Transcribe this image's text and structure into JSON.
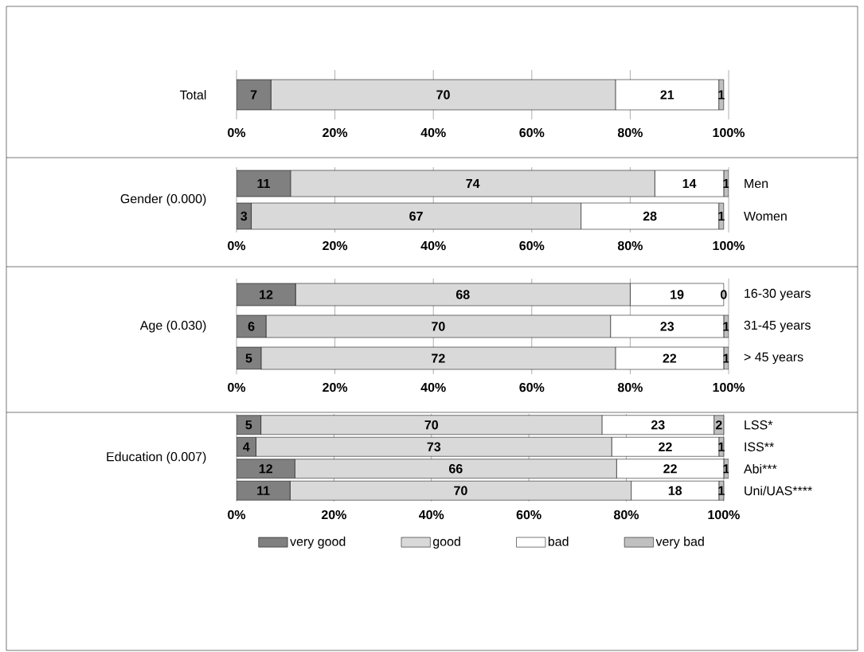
{
  "chart_data": [
    {
      "type": "bar",
      "orientation": "horizontal",
      "stacked": true,
      "ylabel": "Total",
      "categories": [
        null
      ],
      "series": [
        {
          "color": "#808080",
          "values": [
            7
          ]
        },
        {
          "color": "#d9d9d9",
          "values": [
            70
          ]
        },
        {
          "color": "#ffffff",
          "values": [
            21
          ]
        },
        {
          "color": "#c0c0c0",
          "values": [
            1
          ]
        }
      ],
      "xlim": [
        0,
        100
      ],
      "xticks": [
        {
          "value": 0,
          "label": "0%"
        },
        {
          "value": 20,
          "label": "20%"
        },
        {
          "value": 40,
          "label": "40%"
        },
        {
          "value": 60,
          "label": "60%"
        },
        {
          "value": 80,
          "label": "80%"
        },
        {
          "value": 100,
          "label": "100%"
        }
      ],
      "grid": "x",
      "data_labels": true
    },
    {
      "type": "bar",
      "orientation": "horizontal",
      "stacked": true,
      "ylabel": "Gender (0.000)",
      "categories": [
        "Men",
        "Women"
      ],
      "series": [
        {
          "color": "#808080",
          "values": [
            11,
            3
          ]
        },
        {
          "color": "#d9d9d9",
          "values": [
            74,
            67
          ]
        },
        {
          "color": "#ffffff",
          "values": [
            14,
            28
          ]
        },
        {
          "color": "#c0c0c0",
          "values": [
            1,
            1
          ]
        }
      ],
      "xlim": [
        0,
        100
      ],
      "xticks": [
        {
          "value": 0,
          "label": "0%"
        },
        {
          "value": 20,
          "label": "20%"
        },
        {
          "value": 40,
          "label": "40%"
        },
        {
          "value": 60,
          "label": "60%"
        },
        {
          "value": 80,
          "label": "80%"
        },
        {
          "value": 100,
          "label": "100%"
        }
      ],
      "grid": "x",
      "data_labels": true
    },
    {
      "type": "bar",
      "orientation": "horizontal",
      "stacked": true,
      "ylabel": "Age (0.030)",
      "categories": [
        "16-30 years",
        "31-45 years",
        "> 45 years"
      ],
      "series": [
        {
          "color": "#808080",
          "values": [
            12,
            6,
            5
          ]
        },
        {
          "color": "#d9d9d9",
          "values": [
            68,
            70,
            72
          ]
        },
        {
          "color": "#ffffff",
          "values": [
            19,
            23,
            22
          ]
        },
        {
          "color": "#c0c0c0",
          "values": [
            0,
            1,
            1
          ]
        }
      ],
      "xlim": [
        0,
        100
      ],
      "xticks": [
        {
          "value": 0,
          "label": "0%"
        },
        {
          "value": 20,
          "label": "20%"
        },
        {
          "value": 40,
          "label": "40%"
        },
        {
          "value": 60,
          "label": "60%"
        },
        {
          "value": 80,
          "label": "80%"
        },
        {
          "value": 100,
          "label": "100%"
        }
      ],
      "grid": "x",
      "data_labels": true
    },
    {
      "type": "bar",
      "orientation": "horizontal",
      "stacked": true,
      "ylabel": "Education (0.007)",
      "categories": [
        "LSS*",
        "ISS**",
        "Abi***",
        "Uni/UAS****"
      ],
      "series": [
        {
          "name": "very good",
          "color": "#808080",
          "values": [
            5,
            4,
            12,
            11
          ]
        },
        {
          "name": "good",
          "color": "#d9d9d9",
          "values": [
            70,
            73,
            66,
            70
          ]
        },
        {
          "name": "bad",
          "color": "#ffffff",
          "values": [
            23,
            22,
            22,
            18
          ]
        },
        {
          "name": "very bad",
          "color": "#c0c0c0",
          "values": [
            2,
            1,
            1,
            1
          ]
        }
      ],
      "xlim": [
        0,
        101
      ],
      "xticks": [
        {
          "value": 0,
          "label": "0%"
        },
        {
          "value": 20,
          "label": "20%"
        },
        {
          "value": 40,
          "label": "40%"
        },
        {
          "value": 60,
          "label": "60%"
        },
        {
          "value": 80,
          "label": "80%"
        },
        {
          "value": 100,
          "label": "100%"
        }
      ],
      "grid": "x",
      "data_labels": true,
      "legend": "bottom"
    }
  ]
}
